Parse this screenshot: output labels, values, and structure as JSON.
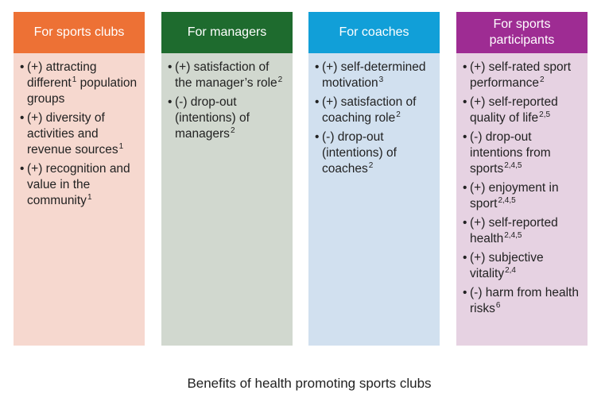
{
  "caption": "Benefits of health promoting sports clubs",
  "columns": [
    {
      "title": "For sports clubs",
      "header_color": "#ED7135",
      "body_color": "#F6D8CF",
      "items": [
        {
          "text": "(+) attracting different",
          "sup": "1",
          "rest": " population groups"
        },
        {
          "text": "(+) diversity of activities and revenue sources",
          "sup": "1"
        },
        {
          "text": "(+) recognition and value in the community",
          "sup": "1"
        }
      ]
    },
    {
      "title": "For managers",
      "header_color": "#1E6B2E",
      "body_color": "#D1D8CF",
      "items": [
        {
          "text": "(+) satisfaction of the manager’s role",
          "sup": "2"
        },
        {
          "text": "(-) drop-out (intentions) of managers",
          "sup": "2"
        }
      ]
    },
    {
      "title": "For coaches",
      "header_color": "#119FD8",
      "body_color": "#D1E0EF",
      "items": [
        {
          "text": "(+) self-determined motivation",
          "sup": "3"
        },
        {
          "text": "(+) satisfaction of coaching role",
          "sup": "2"
        },
        {
          "text": "(-) drop-out (intentions) of coaches",
          "sup": "2"
        }
      ]
    },
    {
      "title": "For sports participants",
      "header_color": "#9E2C93",
      "body_color": "#E6D2E2",
      "items": [
        {
          "text": "(+) self-rated sport performance",
          "sup": "2"
        },
        {
          "text": "(+) self-reported quality of life",
          "sup": "2,5"
        },
        {
          "text": "(-) drop-out intentions from sports",
          "sup": "2,4,5"
        },
        {
          "text": "(+) enjoyment in sport",
          "sup": "2,4,5"
        },
        {
          "text": "(+) self-reported health",
          "sup": "2,4,5"
        },
        {
          "text": "(+) subjective vitality",
          "sup": "2,4"
        },
        {
          "text": " (-) harm from health risks",
          "sup": "6"
        }
      ]
    }
  ]
}
